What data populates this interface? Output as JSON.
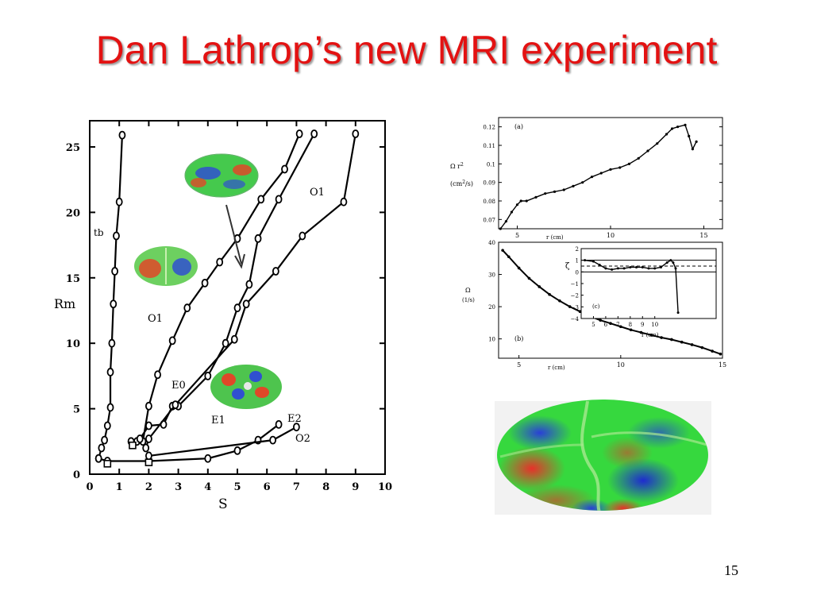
{
  "slide": {
    "title": "Dan Lathrop’s new MRI experiment",
    "page_number": "15"
  },
  "colors": {
    "title": "#e31212",
    "plot_line": "#000000",
    "pattern_green": "#2fd84a",
    "pattern_red": "#e8302a",
    "pattern_blue": "#2a3fd8"
  },
  "chart_data": [
    {
      "type": "line",
      "title": "",
      "xlabel": "S",
      "ylabel": "Rm",
      "xlim": [
        0,
        10
      ],
      "ylim": [
        0,
        27
      ],
      "xticks": [
        "0",
        "1",
        "2",
        "3",
        "4",
        "5",
        "6",
        "7",
        "8",
        "9",
        "10"
      ],
      "yticks": [
        "0",
        "5",
        "10",
        "15",
        "20",
        "25"
      ],
      "grid": false,
      "annotations": [
        "tb",
        "O1",
        "O1",
        "E0",
        "E1",
        "E2",
        "O2"
      ],
      "series": [
        {
          "x": [
            0.3,
            0.4,
            0.5,
            0.6,
            0.7,
            0.7,
            0.75,
            0.8,
            0.85,
            0.9,
            1.0,
            1.1
          ],
          "y": [
            1.2,
            2.0,
            2.6,
            3.7,
            5.1,
            7.8,
            10.0,
            13.0,
            15.5,
            18.2,
            20.8,
            25.9
          ]
        },
        {
          "x": [
            1.4,
            1.6,
            1.8,
            2.0,
            2.3,
            2.8,
            3.3,
            3.9,
            4.4,
            5.0,
            5.8,
            6.6,
            7.1
          ],
          "y": [
            2.5,
            2.5,
            2.5,
            5.2,
            7.6,
            10.2,
            12.7,
            14.6,
            16.2,
            18.0,
            21.0,
            23.3,
            26.0
          ]
        },
        {
          "x": [
            1.7,
            2.0,
            2.5,
            2.8,
            3.0,
            4.0,
            4.6,
            5.0,
            5.4,
            5.7,
            6.4,
            7.6
          ],
          "y": [
            2.7,
            3.7,
            3.8,
            5.2,
            5.2,
            7.5,
            10.0,
            12.7,
            14.5,
            18.0,
            21.0,
            26.0
          ]
        },
        {
          "x": [
            1.9,
            2.0,
            2.9,
            4.9,
            5.3,
            6.3,
            7.2,
            8.6,
            9.0
          ],
          "y": [
            2.0,
            2.7,
            5.3,
            10.3,
            13.0,
            15.5,
            18.2,
            20.8,
            26.0
          ]
        },
        {
          "x": [
            0.3,
            0.6,
            2.0,
            4.0,
            5.0,
            5.7,
            6.4
          ],
          "y": [
            1.2,
            1.0,
            1.0,
            1.2,
            1.8,
            2.6,
            3.8
          ]
        },
        {
          "x": [
            2.0,
            2.0,
            6.2,
            7.0
          ],
          "y": [
            1.0,
            1.4,
            2.6,
            3.6
          ]
        }
      ]
    },
    {
      "type": "line",
      "title": "(a)",
      "xlabel": "r (cm)",
      "ylabel": "Ω r² (cm²/s)",
      "xlim": [
        4,
        16
      ],
      "ylim": [
        0.065,
        0.125
      ],
      "xticks": [
        "5",
        "10",
        "15"
      ],
      "yticks": [
        "0.07",
        "0.08",
        "0.09",
        "0.1",
        "0.11",
        "0.12"
      ],
      "series": [
        {
          "x": [
            4.1,
            4.4,
            4.7,
            5.0,
            5.2,
            5.5,
            6.0,
            6.5,
            7.0,
            7.5,
            8.0,
            8.5,
            9.0,
            9.5,
            10.0,
            10.5,
            11.0,
            11.5,
            12.0,
            12.5,
            13.0,
            13.3,
            13.6,
            14.0,
            14.2,
            14.4,
            14.6
          ],
          "y": [
            0.065,
            0.069,
            0.074,
            0.078,
            0.08,
            0.08,
            0.082,
            0.084,
            0.085,
            0.086,
            0.088,
            0.09,
            0.093,
            0.095,
            0.097,
            0.098,
            0.1,
            0.103,
            0.107,
            0.111,
            0.116,
            0.119,
            0.12,
            0.121,
            0.115,
            0.108,
            0.112
          ]
        }
      ]
    },
    {
      "type": "line",
      "title": "(b)",
      "xlabel": "r (cm)",
      "ylabel": "Ω (1/s)",
      "xlim": [
        4,
        15
      ],
      "ylim": [
        4,
        40
      ],
      "xticks": [
        "5",
        "10",
        "15"
      ],
      "yticks": [
        "10",
        "20",
        "30",
        "40"
      ],
      "series": [
        {
          "x": [
            4.2,
            4.5,
            5.0,
            5.5,
            6.0,
            6.5,
            7.0,
            7.5,
            8.0,
            8.5,
            9.0,
            9.5,
            10.0,
            10.5,
            11.0,
            11.5,
            12.0,
            12.5,
            13.0,
            13.5,
            14.0,
            14.5,
            14.9
          ],
          "y": [
            37.5,
            35.5,
            32.0,
            28.8,
            26.2,
            23.8,
            21.8,
            20.0,
            18.5,
            17.0,
            15.8,
            14.8,
            13.8,
            12.8,
            12.0,
            11.2,
            10.4,
            9.8,
            9.0,
            8.2,
            7.3,
            6.2,
            5.3
          ]
        }
      ]
    },
    {
      "type": "line",
      "title": "(c)",
      "xlabel": "r (cm)",
      "ylabel": "ζ",
      "xlim": [
        4,
        15
      ],
      "ylim": [
        -4,
        2
      ],
      "xticks": [
        "5",
        "6",
        "7",
        "8",
        "9",
        "10"
      ],
      "yticks": [
        "2",
        "1",
        "0",
        "−1",
        "−2",
        "−3",
        "−4"
      ],
      "series": [
        {
          "x": [
            4.3,
            5.0,
            5.5,
            6.0,
            6.5,
            7.0,
            7.5,
            8.0,
            8.5,
            9.0,
            9.5,
            10.0,
            10.5,
            11.0,
            11.3,
            11.5,
            11.7,
            11.9
          ],
          "y": [
            1.0,
            0.9,
            0.6,
            0.3,
            0.2,
            0.3,
            0.3,
            0.4,
            0.4,
            0.4,
            0.3,
            0.3,
            0.4,
            0.8,
            1.0,
            0.8,
            0.3,
            -3.5
          ]
        }
      ]
    }
  ]
}
